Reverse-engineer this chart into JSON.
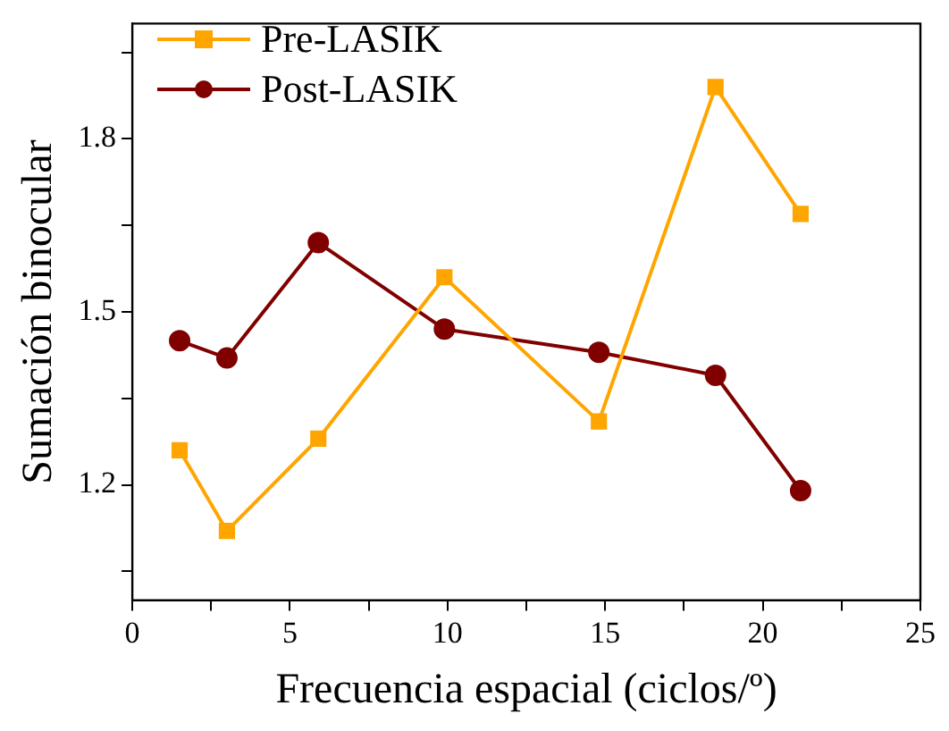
{
  "chart_data": {
    "type": "line",
    "xlabel": "Frecuencia espacial (ciclos/º)",
    "ylabel": "Sumación binocular",
    "x": [
      1.5,
      3.0,
      5.9,
      9.9,
      14.8,
      18.5,
      21.2
    ],
    "series": [
      {
        "name": "Pre-LASIK",
        "color": "#ffa500",
        "marker": "square",
        "values": [
          1.26,
          1.12,
          1.28,
          1.56,
          1.31,
          1.89,
          1.67
        ]
      },
      {
        "name": "Post-LASIK",
        "color": "#800000",
        "marker": "circle",
        "values": [
          1.45,
          1.42,
          1.62,
          1.47,
          1.43,
          1.39,
          1.19
        ]
      }
    ],
    "xlim": [
      0,
      25
    ],
    "xticks": [
      0,
      {
        "value": 2.5,
        "label": null
      },
      5,
      {
        "value": 7.5,
        "label": null
      },
      10,
      {
        "value": 12.5,
        "label": null
      },
      15,
      {
        "value": 17.5,
        "label": null
      },
      20,
      {
        "value": 22.5,
        "label": null
      },
      25
    ],
    "ylim": [
      1.0,
      2.0
    ],
    "yticks": [
      {
        "value": 1.05,
        "label": null
      },
      1.2,
      {
        "value": 1.35,
        "label": null
      },
      1.5,
      {
        "value": 1.65,
        "label": null
      },
      1.8,
      {
        "value": 1.95,
        "label": null
      }
    ],
    "grid": false,
    "legend": "top left",
    "line_style": "solid"
  }
}
